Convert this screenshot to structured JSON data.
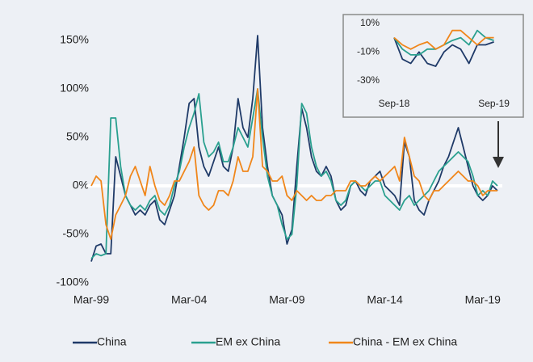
{
  "chart_data": [
    {
      "type": "line",
      "categories": [
        "Mar-99",
        null,
        null,
        null,
        null,
        null,
        null,
        null,
        null,
        null,
        null,
        null,
        null,
        null,
        null,
        null,
        null,
        null,
        null,
        null,
        "Mar-04",
        null,
        null,
        null,
        null,
        null,
        null,
        null,
        null,
        null,
        null,
        null,
        null,
        null,
        null,
        null,
        null,
        null,
        null,
        null,
        "Mar-09",
        null,
        null,
        null,
        null,
        null,
        null,
        null,
        null,
        null,
        null,
        null,
        null,
        null,
        null,
        null,
        null,
        null,
        null,
        null,
        "Mar-14",
        null,
        null,
        null,
        null,
        null,
        null,
        null,
        null,
        null,
        null,
        null,
        null,
        null,
        null,
        null,
        null,
        null,
        null,
        null,
        "Mar-19",
        null,
        null,
        null
      ],
      "series": [
        {
          "name": "China",
          "color": "#1f3a68",
          "values": [
            -78,
            -62,
            -60,
            -70,
            -70,
            30,
            10,
            -10,
            -20,
            -30,
            -25,
            -30,
            -20,
            -15,
            -35,
            -40,
            -25,
            -10,
            20,
            50,
            85,
            90,
            40,
            20,
            10,
            25,
            40,
            20,
            15,
            40,
            90,
            60,
            50,
            90,
            155,
            60,
            20,
            -10,
            -20,
            -30,
            -60,
            -45,
            20,
            80,
            60,
            30,
            15,
            10,
            20,
            10,
            -15,
            -25,
            -20,
            0,
            5,
            -5,
            -10,
            5,
            10,
            15,
            0,
            -5,
            -10,
            -20,
            45,
            30,
            -15,
            -25,
            -30,
            -15,
            -5,
            5,
            20,
            30,
            45,
            60,
            40,
            20,
            0,
            -10,
            -15,
            -10,
            0,
            -5
          ]
        },
        {
          "name": "EM ex China",
          "color": "#2aa08f",
          "values": [
            -75,
            -70,
            -72,
            -70,
            70,
            70,
            20,
            -10,
            -20,
            -25,
            -20,
            -25,
            -15,
            -10,
            -25,
            -30,
            -20,
            0,
            15,
            40,
            60,
            75,
            95,
            45,
            30,
            35,
            45,
            25,
            25,
            40,
            60,
            50,
            40,
            70,
            100,
            50,
            10,
            -10,
            -20,
            -40,
            -55,
            -50,
            0,
            85,
            75,
            40,
            20,
            10,
            15,
            5,
            -15,
            -20,
            -15,
            0,
            5,
            0,
            -5,
            0,
            5,
            5,
            -10,
            -15,
            -20,
            -25,
            -15,
            -10,
            -20,
            -15,
            -10,
            -5,
            5,
            15,
            20,
            25,
            30,
            35,
            30,
            25,
            10,
            -10,
            -5,
            -10,
            5,
            0
          ]
        },
        {
          "name": "China - EM ex China",
          "color": "#f0861a",
          "values": [
            0,
            10,
            5,
            -40,
            -55,
            -30,
            -20,
            -10,
            10,
            20,
            5,
            -10,
            20,
            0,
            -15,
            -20,
            -10,
            5,
            5,
            15,
            25,
            40,
            -10,
            -20,
            -25,
            -20,
            -5,
            -5,
            -10,
            5,
            30,
            15,
            15,
            30,
            100,
            20,
            15,
            5,
            5,
            10,
            -10,
            -15,
            -5,
            -10,
            -15,
            -10,
            -15,
            -15,
            -10,
            -10,
            -5,
            -5,
            -5,
            5,
            5,
            0,
            0,
            5,
            10,
            5,
            10,
            15,
            20,
            5,
            50,
            30,
            10,
            5,
            -10,
            -15,
            -5,
            -5,
            0,
            5,
            10,
            15,
            10,
            5,
            5,
            0,
            -10,
            -5,
            -5,
            -5
          ]
        }
      ],
      "ylim": [
        -100,
        160
      ],
      "yticks": [
        {
          "value": -100,
          "label": "-100%"
        },
        {
          "value": -50,
          "label": "-50%"
        },
        {
          "value": 0,
          "label": "0%"
        },
        {
          "value": 50,
          "label": "50%"
        },
        {
          "value": 100,
          "label": "100%"
        },
        {
          "value": 150,
          "label": "150%"
        }
      ],
      "legend": "bottom"
    },
    {
      "type": "line",
      "categories": [
        "Sep-18",
        null,
        null,
        null,
        null,
        null,
        null,
        null,
        null,
        null,
        null,
        null,
        "Sep-19"
      ],
      "series": [
        {
          "name": "China",
          "color": "#1f3a68",
          "values": [
            0,
            -15,
            -18,
            -10,
            -18,
            -20,
            -10,
            -5,
            -8,
            -18,
            -5,
            -5,
            -3
          ]
        },
        {
          "name": "EM ex China",
          "color": "#2aa08f",
          "values": [
            0,
            -8,
            -12,
            -12,
            -8,
            -8,
            -5,
            -2,
            0,
            -5,
            5,
            0,
            -2
          ]
        },
        {
          "name": "China - EM ex China",
          "color": "#f0861a",
          "values": [
            0,
            -5,
            -8,
            -5,
            -3,
            -8,
            -5,
            5,
            5,
            0,
            -5,
            0,
            0
          ]
        }
      ],
      "ylim": [
        -40,
        15
      ],
      "yticks": [
        {
          "value": -30,
          "label": "-30%"
        },
        {
          "value": -10,
          "label": "-10%"
        },
        {
          "value": 10,
          "label": "10%"
        }
      ]
    }
  ]
}
